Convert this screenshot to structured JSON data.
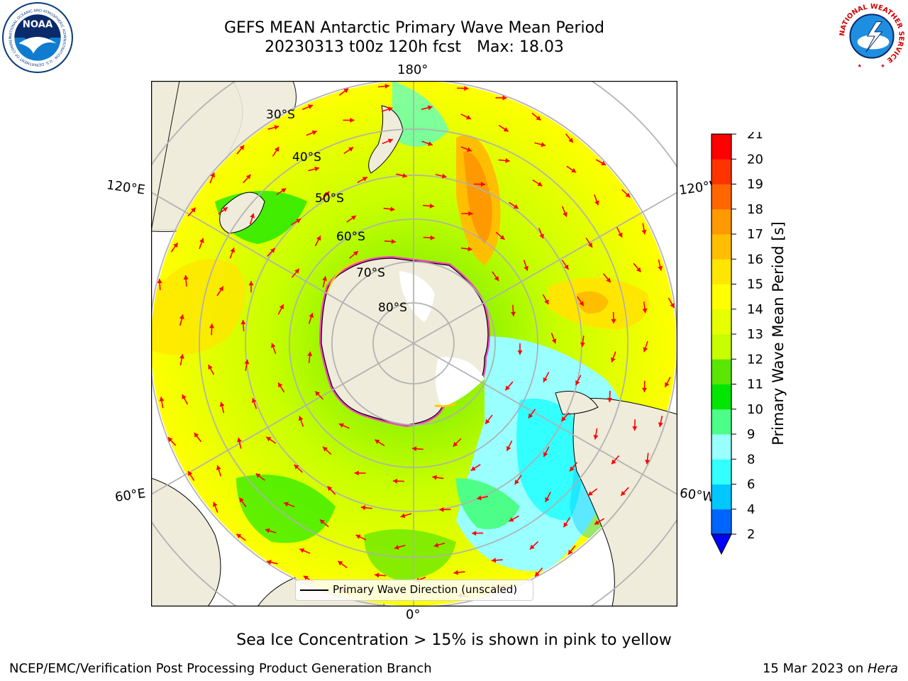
{
  "title": {
    "line1": "GEFS MEAN Antarctic Primary Wave Mean Period",
    "line2_main": "20230313 t00z 120h fcst",
    "line2_max": "Max: 18.03"
  },
  "logos": {
    "left": {
      "text": "NOAA",
      "ring_text": "NATIONAL OCEANIC AND ATMOSPHERIC ADMINISTRATION · U.S. DEPARTMENT OF COMMERCE"
    },
    "right": {
      "ring_text": "NATIONAL WEATHER SERVICE"
    }
  },
  "map": {
    "projection": "south-polar-stereographic",
    "longitude_labels": {
      "top": "180°",
      "bottom": "0°",
      "left_upper": "120°E",
      "left_lower": "60°E",
      "right_upper": "120°W",
      "right_lower": "60°W"
    },
    "latitude_labels": [
      "30°S",
      "40°S",
      "50°S",
      "60°S",
      "70°S",
      "80°S"
    ],
    "colors": {
      "land": "#efecdb",
      "coast": "#000000",
      "grid": "#b0b0b0",
      "arrow": "#ff0000",
      "ice_edge": "#ff33cc",
      "ice_inner": "#ffcc00"
    }
  },
  "colorbar": {
    "label": "Primary Wave Mean Period [s]",
    "ticks": [
      "2",
      "4",
      "6",
      "8",
      "9",
      "10",
      "11",
      "12",
      "13",
      "14",
      "15",
      "16",
      "17",
      "18",
      "19",
      "20",
      "21"
    ],
    "colors": [
      "#0064ff",
      "#00c8ff",
      "#33ffff",
      "#99ffff",
      "#4dff88",
      "#00e600",
      "#5ae600",
      "#c8ff00",
      "#e6ff00",
      "#ffff00",
      "#ffe600",
      "#ffbf00",
      "#ff9900",
      "#ff6600",
      "#ff3300",
      "#ff0000"
    ],
    "extend_color": "#0000ff"
  },
  "legend": {
    "label": "Primary Wave Direction (unscaled)"
  },
  "note": "Sea Ice Concentration > 15% is shown in pink to yellow",
  "footer": {
    "left": "NCEP/EMC/Verification Post Processing Product Generation Branch",
    "date": "15 Mar 2023 on ",
    "host": "Hera"
  }
}
